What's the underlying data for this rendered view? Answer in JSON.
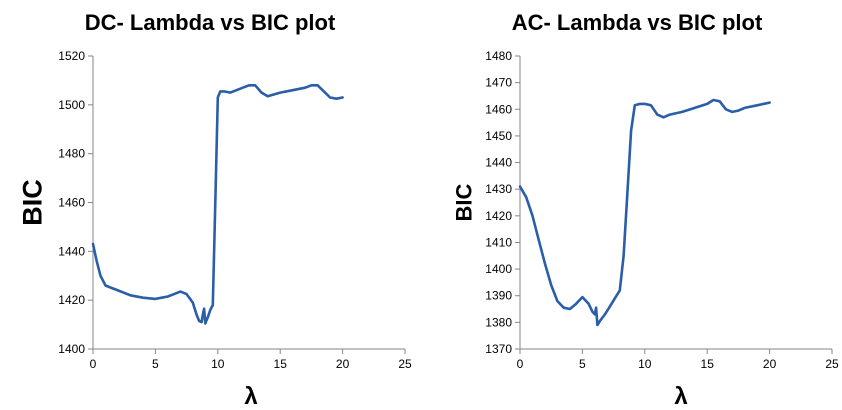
{
  "chart_data": [
    {
      "type": "line",
      "title": "DC- Lambda vs BIC plot",
      "xlabel": "λ",
      "ylabel": "BIC",
      "xlim": [
        0,
        25
      ],
      "ylim": [
        1400,
        1520
      ],
      "xticks": [
        0,
        5,
        10,
        15,
        20,
        25
      ],
      "yticks": [
        1400,
        1420,
        1440,
        1460,
        1480,
        1500,
        1520
      ],
      "grid": false,
      "series": [
        {
          "color": "#2a5ea8",
          "x": [
            0,
            0.3,
            0.6,
            1.0,
            1.5,
            2,
            3,
            4,
            5,
            5.5,
            6,
            6.5,
            7,
            7.5,
            8,
            8.3,
            8.5,
            8.7,
            8.8,
            8.9,
            9.0,
            9.2,
            9.4,
            9.6,
            9.8,
            10.0,
            10.2,
            10.5,
            11,
            11.5,
            12,
            12.5,
            13,
            13.5,
            14,
            15,
            16,
            17,
            17.5,
            18,
            18.5,
            19,
            19.5,
            20
          ],
          "y": [
            1443,
            1436,
            1430,
            1426,
            1425,
            1424,
            1422,
            1421,
            1420.5,
            1421,
            1421.5,
            1422.5,
            1423.5,
            1422.5,
            1419,
            1414,
            1411.5,
            1411,
            1414,
            1416.5,
            1410.5,
            1413,
            1416,
            1418,
            1460,
            1503,
            1505.5,
            1505.5,
            1505,
            1506,
            1507,
            1508,
            1508,
            1505,
            1503.5,
            1505,
            1506,
            1507,
            1508,
            1508,
            1505.5,
            1503,
            1502.5,
            1503
          ]
        }
      ]
    },
    {
      "type": "line",
      "title": "AC- Lambda vs BIC plot",
      "xlabel": "λ",
      "ylabel": "BIC",
      "xlim": [
        0,
        25
      ],
      "ylim": [
        1370,
        1480
      ],
      "xticks": [
        0,
        5,
        10,
        15,
        20,
        25
      ],
      "yticks": [
        1370,
        1380,
        1390,
        1400,
        1410,
        1420,
        1430,
        1440,
        1450,
        1460,
        1470,
        1480
      ],
      "grid": false,
      "series": [
        {
          "color": "#2a5ea8",
          "x": [
            0,
            0.5,
            1,
            1.5,
            2,
            2.5,
            3,
            3.5,
            4,
            4.5,
            5,
            5.5,
            5.8,
            6.0,
            6.1,
            6.2,
            6.4,
            6.8,
            7.2,
            7.6,
            8.0,
            8.3,
            8.6,
            8.9,
            9.2,
            9.6,
            10,
            10.5,
            11,
            11.5,
            12,
            13,
            14,
            15,
            15.5,
            16,
            16.5,
            17,
            17.5,
            18,
            19,
            20
          ],
          "y": [
            1431,
            1427,
            1420,
            1411,
            1402,
            1394,
            1388,
            1385.5,
            1385,
            1387,
            1389.5,
            1387,
            1384,
            1383,
            1385.5,
            1379,
            1380.5,
            1383,
            1386,
            1389,
            1392,
            1405,
            1428,
            1452,
            1461.5,
            1462,
            1462,
            1461.5,
            1458,
            1457,
            1458,
            1459,
            1460.5,
            1462,
            1463.5,
            1463,
            1460,
            1459,
            1459.5,
            1460.5,
            1461.5,
            1462.5
          ]
        }
      ]
    }
  ]
}
